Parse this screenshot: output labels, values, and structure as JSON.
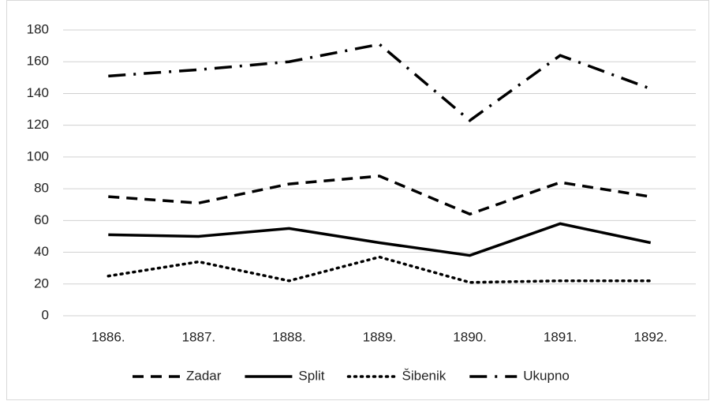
{
  "chart_data": {
    "type": "line",
    "categories": [
      "1886.",
      "1887.",
      "1888.",
      "1889.",
      "1890.",
      "1891.",
      "1892."
    ],
    "series": [
      {
        "name": "Zadar",
        "color": "#000000",
        "dash": "dashed",
        "values": [
          75,
          71,
          83,
          88,
          64,
          84,
          75
        ]
      },
      {
        "name": "Split",
        "color": "#000000",
        "dash": "solid",
        "values": [
          51,
          50,
          55,
          46,
          38,
          58,
          46
        ]
      },
      {
        "name": "Šibenik",
        "color": "#000000",
        "dash": "dotted",
        "values": [
          25,
          34,
          22,
          37,
          21,
          22,
          22
        ]
      },
      {
        "name": "Ukupno",
        "color": "#000000",
        "dash": "dashdot",
        "values": [
          151,
          155,
          160,
          171,
          123,
          164,
          143
        ]
      }
    ],
    "ylim": [
      0,
      180
    ],
    "yticks": [
      0,
      20,
      40,
      60,
      80,
      100,
      120,
      140,
      160,
      180
    ],
    "grid": true,
    "legend": "bottom"
  }
}
